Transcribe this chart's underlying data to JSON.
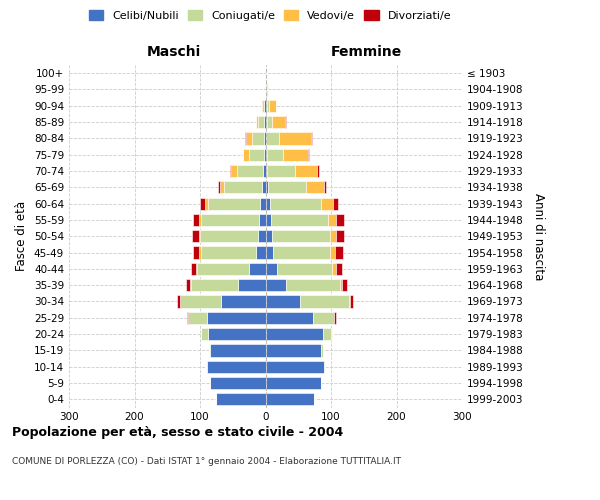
{
  "age_groups": [
    "0-4",
    "5-9",
    "10-14",
    "15-19",
    "20-24",
    "25-29",
    "30-34",
    "35-39",
    "40-44",
    "45-49",
    "50-54",
    "55-59",
    "60-64",
    "65-69",
    "70-74",
    "75-79",
    "80-84",
    "85-89",
    "90-94",
    "95-99",
    "100+"
  ],
  "birth_years": [
    "1999-2003",
    "1994-1998",
    "1989-1993",
    "1984-1988",
    "1979-1983",
    "1974-1978",
    "1969-1973",
    "1964-1968",
    "1959-1963",
    "1954-1958",
    "1949-1953",
    "1944-1948",
    "1939-1943",
    "1934-1938",
    "1929-1933",
    "1924-1928",
    "1919-1923",
    "1914-1918",
    "1909-1913",
    "1904-1908",
    "≤ 1903"
  ],
  "maschi_celibi": [
    75,
    84,
    90,
    84,
    88,
    90,
    68,
    42,
    25,
    15,
    12,
    10,
    8,
    6,
    4,
    3,
    2,
    3,
    2,
    0,
    0
  ],
  "maschi_coniugati": [
    0,
    0,
    1,
    2,
    10,
    28,
    62,
    72,
    80,
    84,
    88,
    88,
    80,
    58,
    40,
    22,
    18,
    8,
    4,
    0,
    0
  ],
  "maschi_vedovi": [
    0,
    0,
    0,
    0,
    0,
    0,
    1,
    1,
    1,
    2,
    2,
    3,
    4,
    6,
    8,
    9,
    10,
    3,
    1,
    0,
    0
  ],
  "maschi_divorziati": [
    0,
    0,
    0,
    0,
    1,
    2,
    4,
    6,
    8,
    9,
    10,
    10,
    8,
    3,
    2,
    1,
    1,
    1,
    0,
    0,
    0
  ],
  "femmine_nubili": [
    74,
    84,
    90,
    85,
    88,
    72,
    52,
    32,
    18,
    12,
    10,
    8,
    7,
    4,
    3,
    2,
    1,
    2,
    2,
    1,
    0
  ],
  "femmine_coniugate": [
    0,
    0,
    1,
    3,
    12,
    32,
    75,
    82,
    84,
    86,
    88,
    88,
    78,
    58,
    42,
    25,
    20,
    8,
    4,
    1,
    0
  ],
  "femmine_vedove": [
    0,
    0,
    0,
    0,
    1,
    1,
    2,
    3,
    5,
    8,
    10,
    12,
    18,
    28,
    33,
    38,
    48,
    20,
    10,
    2,
    1
  ],
  "femmine_divorziate": [
    0,
    0,
    0,
    0,
    1,
    2,
    5,
    8,
    10,
    12,
    12,
    12,
    8,
    3,
    3,
    2,
    2,
    1,
    0,
    0,
    0
  ],
  "colors": {
    "celibi_nubili": "#4472C4",
    "coniugati": "#C5D99A",
    "vedovi": "#FFBF47",
    "divorziati": "#C0000C"
  },
  "xlim": 300,
  "title": "Popolazione per età, sesso e stato civile - 2004",
  "subtitle": "COMUNE DI PORLEZZA (CO) - Dati ISTAT 1° gennaio 2004 - Elaborazione TUTTITALIA.IT",
  "ylabel_left": "Fasce di età",
  "ylabel_right": "Anni di nascita",
  "maschi_label": "Maschi",
  "femmine_label": "Femmine",
  "legend_labels": [
    "Celibi/Nubili",
    "Coniugati/e",
    "Vedovi/e",
    "Divorziati/e"
  ],
  "background_color": "#ffffff",
  "grid_color": "#cccccc"
}
